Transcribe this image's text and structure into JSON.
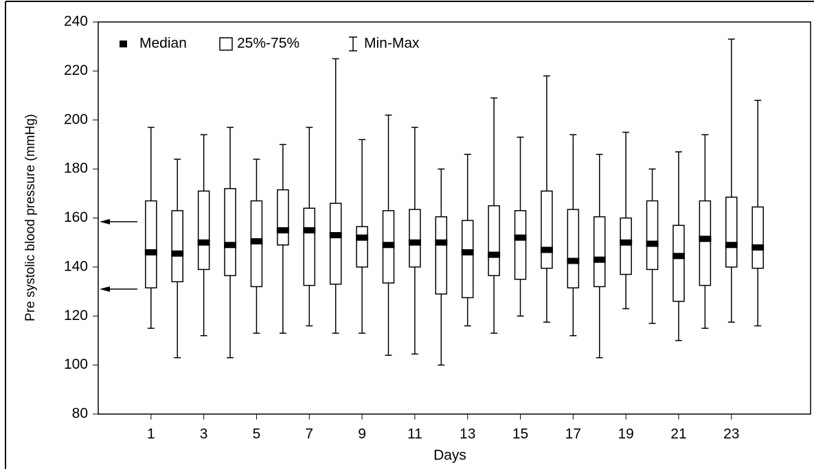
{
  "chart_data": {
    "type": "box",
    "x_label": "Days",
    "y_label": "Pre systolic blood pressure (mmHg)",
    "legend": [
      "Median",
      "25%-75%",
      "Min-Max"
    ],
    "x": [
      1,
      2,
      3,
      4,
      5,
      6,
      7,
      8,
      9,
      10,
      11,
      12,
      13,
      14,
      15,
      16,
      17,
      18,
      19,
      20,
      21,
      22,
      23,
      24
    ],
    "min": [
      115,
      103,
      112,
      103,
      113,
      113,
      116,
      113,
      113,
      104,
      104.5,
      100,
      116,
      113,
      120,
      117.5,
      112,
      103,
      123,
      117,
      110,
      115,
      117.5,
      116
    ],
    "q1": [
      131.5,
      134,
      139,
      136.5,
      132,
      149,
      132.5,
      133,
      140,
      133.5,
      140,
      129,
      127.5,
      136.5,
      135,
      139.5,
      131.5,
      132,
      137,
      139,
      126,
      132.5,
      140,
      139.5
    ],
    "median": [
      146,
      145.5,
      150,
      149,
      150.5,
      155,
      155,
      153,
      152,
      149,
      150,
      150,
      146,
      145,
      152,
      147,
      142.5,
      143,
      150,
      149.5,
      144.5,
      151.5,
      149,
      148
    ],
    "q3": [
      167,
      163,
      171,
      172,
      167,
      171.5,
      164,
      166,
      156.5,
      163,
      163.5,
      160.5,
      159,
      165,
      163,
      171,
      163.5,
      160.5,
      160,
      167,
      157,
      167,
      168.5,
      164.5
    ],
    "max": [
      197,
      184,
      194,
      197,
      184,
      190,
      197,
      225,
      192,
      202,
      197,
      180,
      186,
      209,
      193,
      218,
      194,
      186,
      195,
      180,
      187,
      194,
      233,
      208
    ],
    "arrows": [
      158.5,
      131
    ],
    "xlim": [
      -1,
      26
    ],
    "xticks": [
      1,
      3,
      5,
      7,
      9,
      11,
      13,
      15,
      17,
      19,
      21,
      23
    ],
    "ylim": [
      80,
      240
    ],
    "yticks": [
      80,
      100,
      120,
      140,
      160,
      180,
      200,
      220,
      240
    ],
    "color": "#000000"
  }
}
